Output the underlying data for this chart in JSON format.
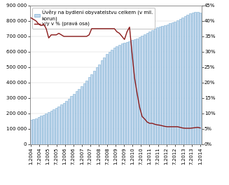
{
  "legend_bar": "Úvěry na bydlení obyvatelstvu celkem (v mil.\nkorun)",
  "legend_line": "y/y v % (pravá osa)",
  "bar_color": "#c5d9ed",
  "bar_edge_color": "#7bafd4",
  "line_color": "#8b1a1a",
  "background_color": "#ffffff",
  "ylim_left": [
    0,
    900000
  ],
  "ylim_right": [
    0,
    0.45
  ],
  "yticks_left": [
    0,
    100000,
    200000,
    300000,
    400000,
    500000,
    600000,
    700000,
    800000,
    900000
  ],
  "ytick_labels_left": [
    "0",
    "100 000",
    "200 000",
    "300 000",
    "400 000",
    "500 000",
    "600 000",
    "700 000",
    "800 000",
    "900 000"
  ],
  "yticks_right": [
    0.0,
    0.05,
    0.1,
    0.15,
    0.2,
    0.25,
    0.3,
    0.35,
    0.4,
    0.45
  ],
  "ytick_labels_right": [
    "0%",
    "5%",
    "10%",
    "15%",
    "20%",
    "25%",
    "30%",
    "35%",
    "40%",
    "45%"
  ],
  "bar_values": [
    160000,
    165000,
    170000,
    176000,
    184000,
    191000,
    199000,
    207000,
    216000,
    225000,
    235000,
    246000,
    258000,
    270000,
    283000,
    297000,
    312000,
    327000,
    343000,
    360000,
    377000,
    395000,
    414000,
    434000,
    455000,
    476000,
    498000,
    520000,
    543000,
    564000,
    584000,
    601000,
    615000,
    627000,
    637000,
    646000,
    652000,
    658000,
    664000,
    669000,
    675000,
    681000,
    688000,
    696000,
    705000,
    714000,
    722000,
    731000,
    740000,
    749000,
    757000,
    763000,
    769000,
    774000,
    779000,
    784000,
    790000,
    797000,
    805000,
    814000,
    823000,
    832000,
    841000,
    849000,
    855000,
    858000,
    860000,
    852000
  ],
  "line_values": [
    0.41,
    0.405,
    0.4,
    0.39,
    0.385,
    0.39,
    0.375,
    0.345,
    0.355,
    0.355,
    0.355,
    0.36,
    0.355,
    0.35,
    0.35,
    0.35,
    0.35,
    0.35,
    0.35,
    0.35,
    0.35,
    0.35,
    0.35,
    0.355,
    0.375,
    0.375,
    0.375,
    0.375,
    0.375,
    0.375,
    0.375,
    0.375,
    0.375,
    0.375,
    0.365,
    0.36,
    0.35,
    0.34,
    0.365,
    0.38,
    0.295,
    0.215,
    0.165,
    0.12,
    0.09,
    0.082,
    0.072,
    0.068,
    0.068,
    0.065,
    0.063,
    0.062,
    0.06,
    0.058,
    0.057,
    0.057,
    0.057,
    0.057,
    0.057,
    0.055,
    0.053,
    0.052,
    0.052,
    0.052,
    0.053,
    0.054,
    0.055,
    0.053
  ],
  "xtick_labels": [
    "1.2004",
    "7.2004",
    "1.2005",
    "7.2005",
    "1.2006",
    "7.2006",
    "1.2007",
    "7.2007",
    "1.2008",
    "7.2008",
    "1.2009",
    "7.2009",
    "1.2010",
    "7.2010",
    "1.2011",
    "7.2011",
    "1.2012",
    "7.2012",
    "1.2013",
    "7.2013",
    "1.2014"
  ],
  "font_size": 5.0,
  "legend_font_size": 5.0
}
